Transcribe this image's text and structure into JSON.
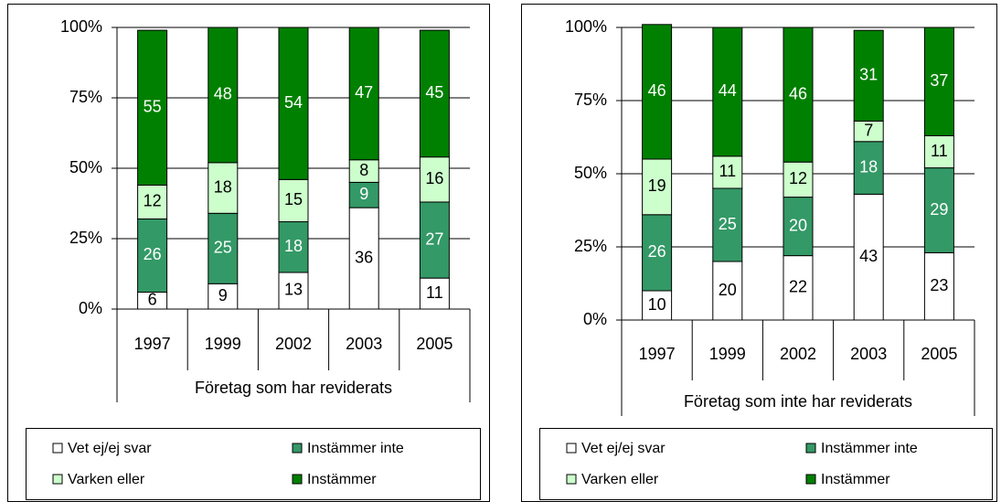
{
  "chart_data": [
    {
      "type": "bar",
      "stacked": true,
      "xlabel": "Företag som har reviderats",
      "categories": [
        "1997",
        "1999",
        "2002",
        "2003",
        "2005"
      ],
      "series": [
        {
          "name": "Vet ej/ej svar",
          "color": "#ffffff",
          "values": [
            6,
            9,
            13,
            36,
            11
          ]
        },
        {
          "name": "Instämmer inte",
          "color": "#339966",
          "values": [
            26,
            25,
            18,
            9,
            27
          ]
        },
        {
          "name": "Varken eller",
          "color": "#ccffcc",
          "values": [
            12,
            18,
            15,
            8,
            16
          ]
        },
        {
          "name": "Instämmer",
          "color": "#008000",
          "values": [
            55,
            48,
            54,
            47,
            45
          ]
        }
      ],
      "ylim": [
        0,
        100
      ],
      "yticks": [
        {
          "value": 0,
          "label": "0%"
        },
        {
          "value": 25,
          "label": "25%"
        },
        {
          "value": 50,
          "label": "50%"
        },
        {
          "value": 75,
          "label": "75%"
        },
        {
          "value": 100,
          "label": "100%"
        }
      ],
      "grid": true,
      "legend": "bottom"
    },
    {
      "type": "bar",
      "stacked": true,
      "xlabel": "Företag som inte har reviderats",
      "categories": [
        "1997",
        "1999",
        "2002",
        "2003",
        "2005"
      ],
      "series": [
        {
          "name": "Vet ej/ej svar",
          "color": "#ffffff",
          "values": [
            10,
            20,
            22,
            43,
            23
          ]
        },
        {
          "name": "Instämmer inte",
          "color": "#339966",
          "values": [
            26,
            25,
            20,
            18,
            29
          ]
        },
        {
          "name": "Varken eller",
          "color": "#ccffcc",
          "values": [
            19,
            11,
            12,
            7,
            11
          ]
        },
        {
          "name": "Instämmer",
          "color": "#008000",
          "values": [
            46,
            44,
            46,
            31,
            37
          ]
        }
      ],
      "ylim": [
        0,
        100
      ],
      "yticks": [
        {
          "value": 0,
          "label": "0%"
        },
        {
          "value": 25,
          "label": "25%"
        },
        {
          "value": 50,
          "label": "50%"
        },
        {
          "value": 75,
          "label": "75%"
        },
        {
          "value": 100,
          "label": "100%"
        }
      ],
      "grid": true,
      "legend": "bottom"
    }
  ]
}
